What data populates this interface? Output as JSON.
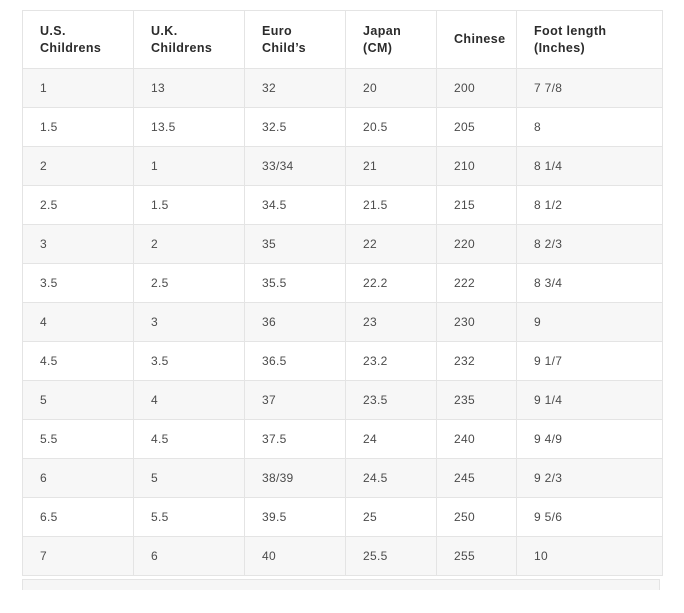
{
  "colors": {
    "row_alt_bg": "#f7f7f7",
    "border": "#e4e4e4",
    "header_text": "#2b2b2b",
    "cell_text": "#4b4b4b"
  },
  "table": {
    "columns": [
      {
        "label": "U.S. Childrens"
      },
      {
        "label": "U.K. Childrens"
      },
      {
        "label": "Euro Child’s"
      },
      {
        "label": "Japan (CM)"
      },
      {
        "label": "Chinese"
      },
      {
        "label": "Foot length (Inches)"
      }
    ],
    "rows": [
      [
        "1",
        "13",
        "32",
        "20",
        "200",
        "7 7/8"
      ],
      [
        "1.5",
        "13.5",
        "32.5",
        "20.5",
        "205",
        "8"
      ],
      [
        "2",
        "1",
        "33/34",
        "21",
        "210",
        "8 1/4"
      ],
      [
        "2.5",
        "1.5",
        "34.5",
        "21.5",
        "215",
        "8 1/2"
      ],
      [
        "3",
        "2",
        "35",
        "22",
        "220",
        "8 2/3"
      ],
      [
        "3.5",
        "2.5",
        "35.5",
        "22.2",
        "222",
        "8 3/4"
      ],
      [
        "4",
        "3",
        "36",
        "23",
        "230",
        "9"
      ],
      [
        "4.5",
        "3.5",
        "36.5",
        "23.2",
        "232",
        "9 1/7"
      ],
      [
        "5",
        "4",
        "37",
        "23.5",
        "235",
        "9 1/4"
      ],
      [
        "5.5",
        "4.5",
        "37.5",
        "24",
        "240",
        "9 4/9"
      ],
      [
        "6",
        "5",
        "38/39",
        "24.5",
        "245",
        "9 2/3"
      ],
      [
        "6.5",
        "5.5",
        "39.5",
        "25",
        "250",
        "9 5/6"
      ],
      [
        "7",
        "6",
        "40",
        "25.5",
        "255",
        "10"
      ]
    ]
  }
}
